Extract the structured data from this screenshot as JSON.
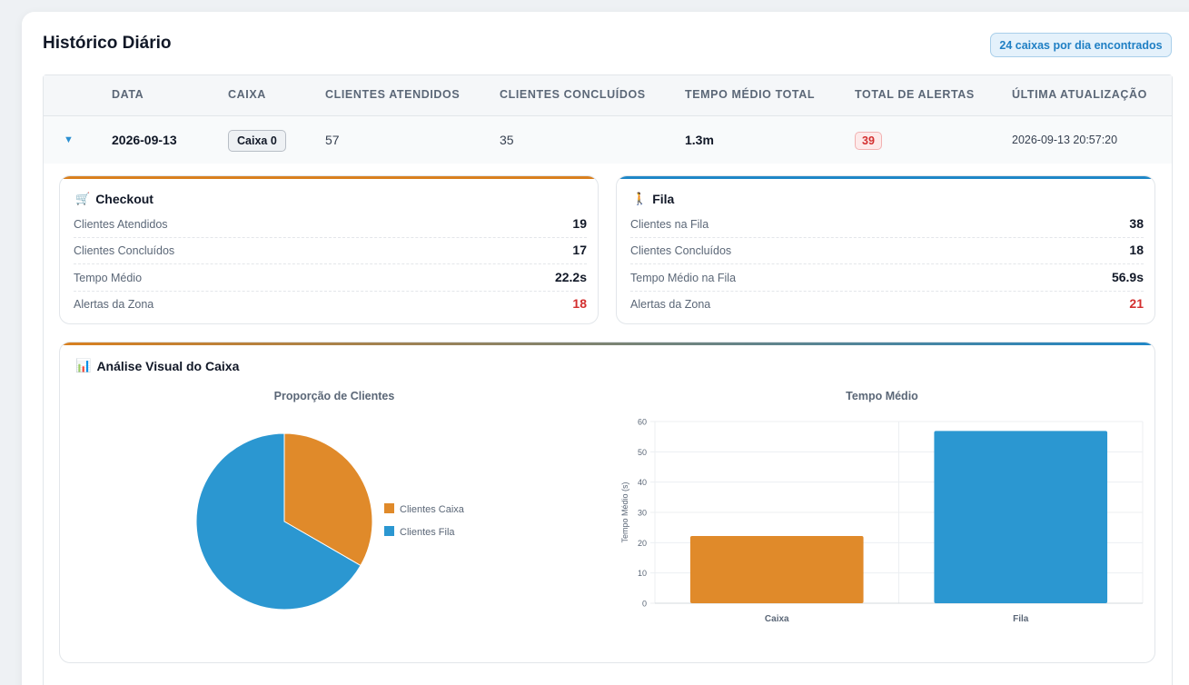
{
  "page": {
    "title": "Histórico Diário",
    "count_badge": "24 caixas por dia encontrados"
  },
  "table": {
    "columns": [
      "DATA",
      "CAIXA",
      "CLIENTES ATENDIDOS",
      "CLIENTES CONCLUÍDOS",
      "TEMPO MÉDIO TOTAL",
      "TOTAL DE ALERTAS",
      "ÚLTIMA ATUALIZAÇÃO"
    ],
    "row": {
      "toggle": "▼",
      "data": "2026-09-13",
      "caixa": "Caixa 0",
      "clientes_atendidos": "57",
      "clientes_concluidos": "35",
      "tempo_medio_total": "1.3m",
      "total_alertas": "39",
      "ultima_atualizacao": "2026-09-13 20:57:20"
    }
  },
  "checkout": {
    "icon": "cart-icon",
    "accent": "#d9801f",
    "title": "Checkout",
    "stats": [
      {
        "label": "Clientes Atendidos",
        "value": "19"
      },
      {
        "label": "Clientes Concluídos",
        "value": "17"
      },
      {
        "label": "Tempo Médio",
        "value": "22.2s"
      },
      {
        "label": "Alertas da Zona",
        "value": "18"
      }
    ]
  },
  "fila": {
    "icon": "walking-person-icon",
    "accent": "#1f87c7",
    "title": "Fila",
    "stats": [
      {
        "label": "Clientes na Fila",
        "value": "38"
      },
      {
        "label": "Clientes Concluídos",
        "value": "18"
      },
      {
        "label": "Tempo Médio na Fila",
        "value": "56.9s"
      },
      {
        "label": "Alertas da Zona",
        "value": "21"
      }
    ]
  },
  "analysis": {
    "icon": "bar-chart-icon",
    "title": "Análise Visual do Caixa"
  },
  "chart_data": [
    {
      "type": "pie",
      "title": "Proporção de Clientes",
      "categories": [
        "Clientes Caixa",
        "Clientes Fila"
      ],
      "values": [
        19,
        38
      ],
      "colors": [
        "#e08a2a",
        "#2b97d1"
      ],
      "legend": "right"
    },
    {
      "type": "bar",
      "title": "Tempo Médio",
      "categories": [
        "Caixa",
        "Fila"
      ],
      "values": [
        22.2,
        56.9
      ],
      "colors": [
        "#e08a2a",
        "#2b97d1"
      ],
      "xlabel": "",
      "ylabel": "Tempo Médio (s)",
      "ylim": [
        0,
        60
      ],
      "yticks": [
        0,
        10,
        20,
        30,
        40,
        50,
        60
      ],
      "grid": true
    }
  ]
}
